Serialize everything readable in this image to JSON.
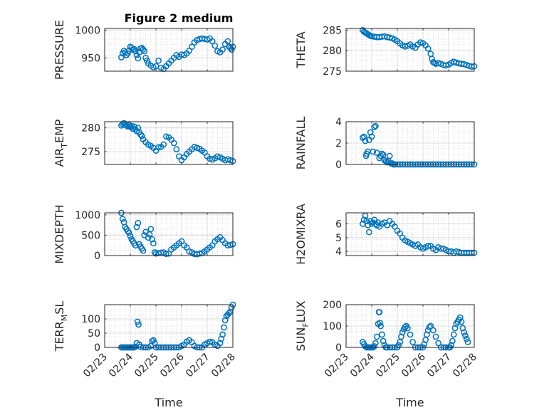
{
  "figure": {
    "title": "Figure 2 medium"
  },
  "colors": {
    "marker": "#0072BD",
    "axis": "#262626",
    "grid": "#c8c8c8"
  },
  "chart_data": [
    {
      "type": "scatter",
      "ylabel_main": "PRESSURE",
      "ylabel_sub": "",
      "ylabel_tail": "",
      "ylim": [
        926,
        1003
      ],
      "yticks": [
        950,
        1000
      ],
      "ytick_labels": [
        "950",
        "1000"
      ],
      "xticks": [
        0,
        1,
        2,
        3,
        4,
        5
      ],
      "xtick_labels": [],
      "xlabel": "",
      "x": [
        0.65,
        0.7,
        0.75,
        0.8,
        0.85,
        0.9,
        0.95,
        1.0,
        1.05,
        1.1,
        1.15,
        1.2,
        1.25,
        1.3,
        1.35,
        1.4,
        1.45,
        1.5,
        1.55,
        1.6,
        1.65,
        1.7,
        1.8,
        1.9,
        2.0,
        2.1,
        2.2,
        2.3,
        2.4,
        2.5,
        2.6,
        2.7,
        2.8,
        2.9,
        3.0,
        3.1,
        3.2,
        3.3,
        3.4,
        3.5,
        3.6,
        3.7,
        3.8,
        3.9,
        4.0,
        4.1,
        4.2,
        4.3,
        4.4,
        4.5,
        4.6,
        4.7,
        4.8,
        4.85,
        4.9,
        4.95,
        5.0
      ],
      "y": [
        951,
        958,
        963,
        960,
        955,
        958,
        963,
        970,
        968,
        965,
        966,
        962,
        955,
        949,
        960,
        967,
        968,
        965,
        962,
        950,
        945,
        940,
        936,
        933,
        935,
        945,
        932,
        930,
        935,
        940,
        945,
        950,
        955,
        952,
        956,
        955,
        958,
        963,
        970,
        978,
        982,
        984,
        985,
        984,
        983,
        985,
        980,
        972,
        962,
        960,
        965,
        975,
        980,
        970,
        968,
        965,
        970
      ]
    },
    {
      "type": "scatter",
      "ylabel_main": "THETA",
      "ylabel_sub": "",
      "ylabel_tail": "",
      "ylim": [
        275,
        285.4
      ],
      "yticks": [
        275,
        280,
        285
      ],
      "ytick_labels": [
        "275",
        "280",
        "285"
      ],
      "xticks": [
        0,
        1,
        2,
        3,
        4,
        5
      ],
      "xtick_labels": [],
      "xlabel": "",
      "x": [
        0.65,
        0.7,
        0.75,
        0.8,
        0.85,
        0.9,
        0.95,
        1.0,
        1.1,
        1.2,
        1.3,
        1.4,
        1.5,
        1.6,
        1.7,
        1.8,
        1.9,
        2.0,
        2.1,
        2.2,
        2.3,
        2.4,
        2.5,
        2.6,
        2.7,
        2.8,
        2.9,
        3.0,
        3.1,
        3.2,
        3.3,
        3.35,
        3.4,
        3.45,
        3.5,
        3.6,
        3.7,
        3.8,
        3.9,
        4.0,
        4.1,
        4.2,
        4.3,
        4.4,
        4.5,
        4.6,
        4.7,
        4.8,
        4.9,
        5.0
      ],
      "y": [
        285,
        284.6,
        284.4,
        284.2,
        284,
        283.8,
        283.6,
        283.5,
        283.4,
        283.3,
        283.3,
        283.4,
        283.5,
        283.3,
        283.2,
        283,
        282.7,
        282.3,
        281.8,
        281.3,
        281,
        281.2,
        281.5,
        281,
        280.7,
        281.5,
        282,
        281.8,
        281.3,
        280.5,
        279.2,
        278,
        277.2,
        277,
        276.8,
        277,
        276.8,
        276.5,
        276.4,
        276.6,
        277,
        277.3,
        277.1,
        276.9,
        276.8,
        276.7,
        276.5,
        276.3,
        276.1,
        276.2
      ]
    },
    {
      "type": "scatter",
      "ylabel_main": "AIR",
      "ylabel_sub": "T",
      "ylabel_tail": "EMP",
      "ylim": [
        272.3,
        281.3
      ],
      "yticks": [
        275,
        280
      ],
      "ytick_labels": [
        "275",
        "280"
      ],
      "xticks": [
        0,
        1,
        2,
        3,
        4,
        5
      ],
      "xtick_labels": [],
      "xlabel": "",
      "x": [
        0.65,
        0.7,
        0.75,
        0.8,
        0.85,
        0.9,
        0.95,
        1.0,
        1.05,
        1.1,
        1.15,
        1.2,
        1.25,
        1.3,
        1.35,
        1.4,
        1.45,
        1.5,
        1.6,
        1.7,
        1.8,
        1.9,
        2.0,
        2.1,
        2.2,
        2.3,
        2.4,
        2.5,
        2.6,
        2.7,
        2.8,
        2.9,
        3.0,
        3.1,
        3.2,
        3.3,
        3.4,
        3.5,
        3.6,
        3.7,
        3.8,
        3.9,
        4.0,
        4.1,
        4.2,
        4.3,
        4.4,
        4.5,
        4.6,
        4.7,
        4.8,
        4.9,
        5.0
      ],
      "y": [
        280.5,
        280.8,
        281,
        280.7,
        280.5,
        280.3,
        280.6,
        280.2,
        280.4,
        279.8,
        280.3,
        279.7,
        279.3,
        280,
        279.1,
        278.6,
        278.3,
        277.6,
        277,
        276.5,
        276.2,
        275.8,
        275.2,
        275.9,
        276,
        276.5,
        278.2,
        278,
        277.5,
        276.8,
        275.5,
        274,
        273.2,
        273.8,
        274.5,
        275,
        275.5,
        276,
        275.8,
        275.6,
        275.2,
        274.8,
        274,
        273.5,
        273.3,
        273.6,
        274,
        273.8,
        273.5,
        273.2,
        273.4,
        273.2,
        273.0
      ]
    },
    {
      "type": "scatter",
      "ylabel_main": "RAINFALL",
      "ylabel_sub": "",
      "ylabel_tail": "",
      "ylim": [
        0,
        4
      ],
      "yticks": [
        0,
        2,
        4
      ],
      "ytick_labels": [
        "0",
        "2",
        "4"
      ],
      "xticks": [
        0,
        1,
        2,
        3,
        4,
        5
      ],
      "xtick_labels": [],
      "xlabel": "",
      "x": [
        0.65,
        0.7,
        0.75,
        0.78,
        0.8,
        0.85,
        0.9,
        0.95,
        1.0,
        1.05,
        1.1,
        1.15,
        1.2,
        1.3,
        1.35,
        1.4,
        1.45,
        1.5,
        1.55,
        1.6,
        1.65,
        1.7,
        1.75,
        1.8,
        1.85,
        1.9,
        2.0,
        2.1,
        2.2,
        2.3,
        2.4,
        2.5,
        2.6,
        2.7,
        2.8,
        2.9,
        3.0,
        3.1,
        3.2,
        3.3,
        3.4,
        3.5,
        3.6,
        3.7,
        3.8,
        3.9,
        4.0,
        4.1,
        4.2,
        4.3,
        4.4,
        4.5,
        4.6,
        4.7,
        4.8,
        4.9,
        5.0
      ],
      "y": [
        2.5,
        2.6,
        2.2,
        0.8,
        1.0,
        1.2,
        2.3,
        3.0,
        2.6,
        1.2,
        3.5,
        3.6,
        1.1,
        0.6,
        0.8,
        1.0,
        0.9,
        0.4,
        0.3,
        0.2,
        0.3,
        0.8,
        0.1,
        0.1,
        0,
        0,
        0,
        0,
        0,
        0,
        0,
        0,
        0,
        0,
        0,
        0,
        0,
        0,
        0,
        0,
        0,
        0,
        0,
        0,
        0,
        0,
        0,
        0,
        0,
        0,
        0,
        0,
        0,
        0,
        0,
        0,
        0
      ]
    },
    {
      "type": "scatter",
      "ylabel_main": "MIXDEPTH",
      "ylabel_sub": "",
      "ylabel_tail": "",
      "ylim": [
        0,
        1050
      ],
      "yticks": [
        0,
        500,
        1000
      ],
      "ytick_labels": [
        "0",
        "500",
        "1000"
      ],
      "xticks": [
        0,
        1,
        2,
        3,
        4,
        5
      ],
      "xtick_labels": [],
      "xlabel": "",
      "x": [
        0.65,
        0.7,
        0.75,
        0.8,
        0.85,
        0.9,
        0.95,
        1.0,
        1.05,
        1.1,
        1.15,
        1.2,
        1.25,
        1.3,
        1.35,
        1.4,
        1.45,
        1.5,
        1.55,
        1.6,
        1.7,
        1.75,
        1.8,
        1.85,
        1.9,
        1.95,
        2.0,
        2.1,
        2.2,
        2.3,
        2.4,
        2.5,
        2.6,
        2.7,
        2.8,
        2.9,
        3.0,
        3.1,
        3.2,
        3.3,
        3.4,
        3.5,
        3.6,
        3.7,
        3.8,
        3.9,
        4.0,
        4.1,
        4.2,
        4.3,
        4.4,
        4.5,
        4.6,
        4.7,
        4.8,
        4.9,
        5.0
      ],
      "y": [
        1050,
        900,
        820,
        700,
        650,
        600,
        560,
        480,
        400,
        350,
        300,
        250,
        700,
        800,
        280,
        220,
        170,
        120,
        500,
        580,
        440,
        520,
        650,
        400,
        300,
        80,
        50,
        60,
        70,
        80,
        40,
        50,
        150,
        200,
        250,
        300,
        350,
        250,
        200,
        100,
        80,
        40,
        30,
        50,
        60,
        100,
        150,
        200,
        250,
        350,
        400,
        450,
        380,
        300,
        250,
        260,
        280
      ]
    },
    {
      "type": "scatter",
      "ylabel_main": "H2OMIXRA",
      "ylabel_sub": "",
      "ylabel_tail": "",
      "ylim": [
        3.7,
        6.8
      ],
      "yticks": [
        4,
        5,
        6
      ],
      "ytick_labels": [
        "4",
        "5",
        "6"
      ],
      "xticks": [
        0,
        1,
        2,
        3,
        4,
        5
      ],
      "xtick_labels": [],
      "xlabel": "",
      "x": [
        0.65,
        0.7,
        0.75,
        0.8,
        0.85,
        0.9,
        0.95,
        1.0,
        1.05,
        1.1,
        1.15,
        1.2,
        1.25,
        1.3,
        1.4,
        1.5,
        1.6,
        1.7,
        1.8,
        1.9,
        2.0,
        2.1,
        2.2,
        2.3,
        2.4,
        2.5,
        2.6,
        2.7,
        2.8,
        2.9,
        3.0,
        3.1,
        3.2,
        3.3,
        3.4,
        3.5,
        3.6,
        3.7,
        3.8,
        3.9,
        4.0,
        4.1,
        4.2,
        4.3,
        4.4,
        4.5,
        4.6,
        4.7,
        4.8,
        4.9,
        5.0
      ],
      "y": [
        6.0,
        6.3,
        6.6,
        6.2,
        5.9,
        5.4,
        6.2,
        6.0,
        6.1,
        6.3,
        6.0,
        5.9,
        6.1,
        5.8,
        6.0,
        6.1,
        5.9,
        6.2,
        6.0,
        5.8,
        5.5,
        5.3,
        5.0,
        4.8,
        4.7,
        4.6,
        4.5,
        4.4,
        4.5,
        4.3,
        4.2,
        4.3,
        4.4,
        4.4,
        4.2,
        4.1,
        4.3,
        4.2,
        4.2,
        4.1,
        4.0,
        4.0,
        3.9,
        4.0,
        3.95,
        3.9,
        3.9,
        3.9,
        3.9,
        3.9,
        3.9
      ]
    },
    {
      "type": "scatter",
      "ylabel_main": "TERR",
      "ylabel_sub": "M",
      "ylabel_tail": "SL",
      "ylim": [
        0,
        150
      ],
      "yticks": [
        0,
        50,
        100
      ],
      "ytick_labels": [
        "0",
        "50",
        "100"
      ],
      "xticks": [
        0,
        1,
        2,
        3,
        4,
        5
      ],
      "xtick_labels": [
        "02/23",
        "02/24",
        "02/25",
        "02/26",
        "02/27",
        "02/28"
      ],
      "xlabel": "Time",
      "x": [
        0.65,
        0.7,
        0.75,
        0.8,
        0.85,
        0.9,
        0.95,
        1.0,
        1.05,
        1.1,
        1.15,
        1.2,
        1.25,
        1.28,
        1.32,
        1.35,
        1.4,
        1.5,
        1.6,
        1.7,
        1.8,
        1.85,
        1.9,
        1.95,
        2.0,
        2.1,
        2.2,
        2.3,
        2.4,
        2.5,
        2.6,
        2.7,
        2.8,
        2.9,
        3.0,
        3.1,
        3.2,
        3.3,
        3.4,
        3.5,
        3.6,
        3.7,
        3.8,
        3.9,
        4.0,
        4.1,
        4.2,
        4.3,
        4.4,
        4.5,
        4.55,
        4.6,
        4.65,
        4.7,
        4.75,
        4.8,
        4.85,
        4.9,
        4.95,
        5.0
      ],
      "y": [
        0,
        0,
        0,
        0,
        0,
        0,
        0,
        0,
        0,
        0,
        0,
        2,
        15,
        90,
        80,
        10,
        2,
        0,
        0,
        0,
        5,
        22,
        25,
        15,
        0,
        0,
        0,
        0,
        0,
        0,
        0,
        0,
        0,
        0,
        5,
        10,
        20,
        25,
        18,
        5,
        0,
        0,
        0,
        10,
        15,
        20,
        18,
        10,
        5,
        15,
        30,
        45,
        70,
        95,
        110,
        115,
        120,
        125,
        140,
        150
      ]
    },
    {
      "type": "scatter",
      "ylabel_main": "SUN",
      "ylabel_sub": "F",
      "ylabel_tail": "LUX",
      "ylim": [
        0,
        200
      ],
      "yticks": [
        0,
        100,
        200
      ],
      "ytick_labels": [
        "0",
        "100",
        "200"
      ],
      "xticks": [
        0,
        1,
        2,
        3,
        4,
        5
      ],
      "xtick_labels": [
        "02/23",
        "02/24",
        "02/25",
        "02/26",
        "02/27",
        "02/28"
      ],
      "xlabel": "Time",
      "x": [
        0.65,
        0.7,
        0.75,
        0.8,
        0.85,
        0.9,
        0.95,
        1.0,
        1.05,
        1.1,
        1.15,
        1.2,
        1.25,
        1.28,
        1.3,
        1.32,
        1.35,
        1.4,
        1.45,
        1.5,
        1.55,
        1.6,
        1.7,
        1.8,
        1.9,
        2.0,
        2.05,
        2.1,
        2.15,
        2.2,
        2.25,
        2.3,
        2.35,
        2.4,
        2.5,
        2.6,
        2.7,
        2.8,
        2.9,
        3.0,
        3.05,
        3.1,
        3.15,
        3.2,
        3.25,
        3.3,
        3.4,
        3.5,
        3.6,
        3.7,
        3.8,
        3.9,
        4.0,
        4.05,
        4.1,
        4.15,
        4.2,
        4.25,
        4.3,
        4.35,
        4.4,
        4.45,
        4.5,
        4.55,
        4.6,
        4.65,
        4.7,
        4.75
      ],
      "y": [
        25,
        15,
        5,
        0,
        0,
        0,
        0,
        0,
        0,
        5,
        20,
        50,
        110,
        165,
        165,
        115,
        100,
        60,
        30,
        10,
        0,
        0,
        0,
        0,
        0,
        0,
        10,
        25,
        50,
        70,
        85,
        95,
        100,
        90,
        60,
        25,
        0,
        0,
        0,
        0,
        15,
        35,
        60,
        80,
        95,
        100,
        80,
        50,
        20,
        0,
        0,
        0,
        0,
        0,
        10,
        30,
        60,
        90,
        110,
        120,
        130,
        140,
        120,
        90,
        70,
        55,
        40,
        25
      ]
    }
  ]
}
